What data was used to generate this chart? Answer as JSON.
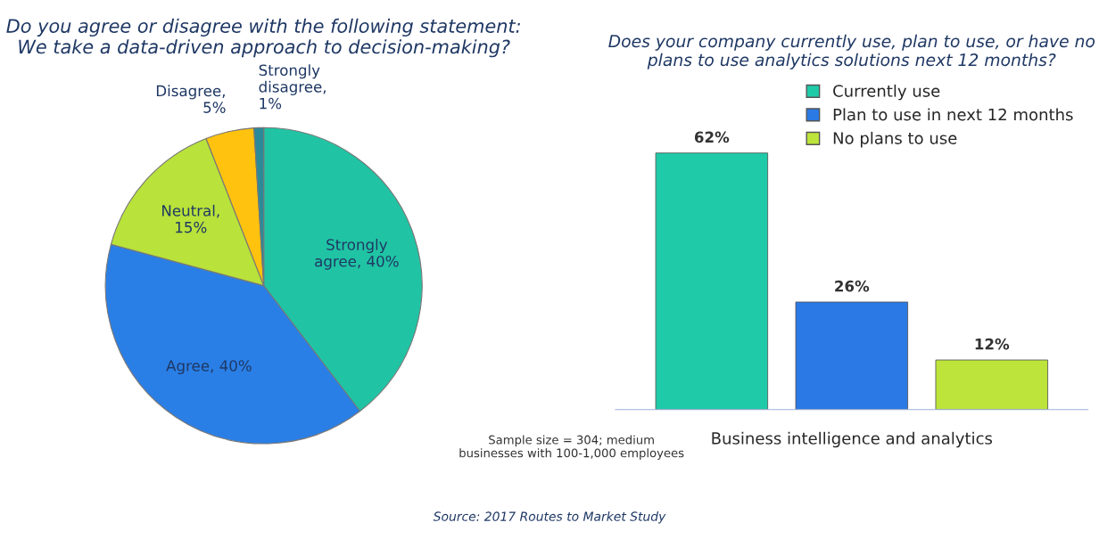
{
  "chart_data": [
    {
      "type": "pie",
      "title": "Do you agree or disagree with the following statement:\nWe take a data-driven approach to decision-making?",
      "categories": [
        "Strongly\nagree, 40%",
        "Agree, 40%",
        "Neutral,\n15%",
        "Disagree,\n5%",
        "Strongly\ndisagree,\n1%"
      ],
      "values": [
        40,
        40,
        15,
        5,
        1
      ],
      "colors": [
        "#20c4a4",
        "#2a7fe6",
        "#b9e23a",
        "#ffc20e",
        "#2b8a98"
      ],
      "legend": false
    },
    {
      "type": "bar",
      "title": "Does your company currently use, plan to use, or have no\nplans to use analytics solutions next 12 months?",
      "xlabel": "Business intelligence and analytics",
      "categories": [
        null
      ],
      "series": [
        {
          "name": "Currently use",
          "color": "#1fcaa8",
          "values": [
            62
          ],
          "value_labels": [
            "62%"
          ]
        },
        {
          "name": "Plan to use in next 12 months",
          "color": "#2a79e4",
          "values": [
            26
          ],
          "value_labels": [
            "26%"
          ]
        },
        {
          "name": "No plans to use",
          "color": "#bde43a",
          "values": [
            12
          ],
          "value_labels": [
            "12%"
          ]
        }
      ],
      "grid": false,
      "legend": "top right",
      "annotations": [
        "Sample size = 304; medium\nbusinesses with 100-1,000 employees",
        "Source: 2017 Routes to Market Study"
      ]
    }
  ]
}
